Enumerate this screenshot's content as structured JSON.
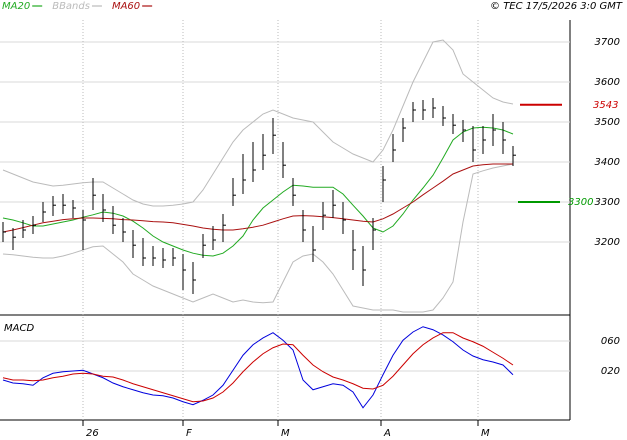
{
  "header": {
    "copyright": "© TEC 17/5/2026 3:0 GMT"
  },
  "chart_data": [
    {
      "type": "ohlc",
      "ylim": [
        3017.5,
        3755
      ],
      "yticks": [
        3200,
        3300,
        3400,
        3500,
        3600,
        3700
      ],
      "grid": true,
      "xticks": [
        {
          "value": 8,
          "label": "26"
        },
        {
          "value": 18,
          "label": "F"
        },
        {
          "value": 27.5,
          "label": "M"
        },
        {
          "value": 37.8,
          "label": "A"
        },
        {
          "value": 47.5,
          "label": "M"
        }
      ],
      "color": "#000000",
      "high": [
        3250,
        3235,
        3255,
        3265,
        3300,
        3315,
        3320,
        3305,
        3280,
        3360,
        3320,
        3290,
        3260,
        3230,
        3210,
        3190,
        3185,
        3185,
        3170,
        3150,
        3220,
        3240,
        3270,
        3360,
        3420,
        3450,
        3470,
        3510,
        3450,
        3360,
        3280,
        3240,
        3300,
        3330,
        3300,
        3230,
        3190,
        3260,
        3390,
        3470,
        3510,
        3550,
        3555,
        3560,
        3540,
        3520,
        3505,
        3490,
        3490,
        3520,
        3500,
        3440
      ],
      "low": [
        3200,
        3180,
        3210,
        3220,
        3250,
        3265,
        3270,
        3260,
        3180,
        3280,
        3250,
        3220,
        3200,
        3160,
        3140,
        3140,
        3135,
        3140,
        3080,
        3070,
        3160,
        3180,
        3200,
        3290,
        3320,
        3350,
        3380,
        3420,
        3360,
        3290,
        3200,
        3150,
        3230,
        3260,
        3220,
        3130,
        3090,
        3180,
        3300,
        3400,
        3450,
        3500,
        3505,
        3510,
        3490,
        3470,
        3450,
        3400,
        3420,
        3440,
        3420,
        3390
      ],
      "close": [
        3225,
        3212,
        3230,
        3242,
        3275,
        3292,
        3292,
        3285,
        3255,
        3317,
        3280,
        3242,
        3225,
        3192,
        3160,
        3160,
        3155,
        3160,
        3130,
        3105,
        3192,
        3205,
        3242,
        3317,
        3355,
        3380,
        3417,
        3467,
        3392,
        3317,
        3230,
        3180,
        3267,
        3292,
        3255,
        3180,
        3130,
        3230,
        3355,
        3430,
        3485,
        3530,
        3530,
        3535,
        3510,
        3492,
        3480,
        3430,
        3455,
        3480,
        3455,
        3417
      ],
      "series": [
        {
          "name": "MA20",
          "color": "#22aa22",
          "values": [
            3260,
            3255,
            3248,
            3240,
            3240,
            3245,
            3250,
            3255,
            3262,
            3268,
            3275,
            3272,
            3265,
            3252,
            3235,
            3215,
            3200,
            3190,
            3180,
            3172,
            3167,
            3165,
            3172,
            3190,
            3215,
            3255,
            3285,
            3305,
            3325,
            3342,
            3340,
            3337,
            3337,
            3337,
            3320,
            3292,
            3265,
            3235,
            3225,
            3240,
            3270,
            3305,
            3335,
            3367,
            3410,
            3455,
            3475,
            3485,
            3487,
            3485,
            3480,
            3470
          ]
        },
        {
          "name": "BBands",
          "color": "#bbbbbb",
          "upper": [
            3380,
            3370,
            3360,
            3350,
            3345,
            3340,
            3342,
            3345,
            3348,
            3350,
            3350,
            3335,
            3320,
            3305,
            3295,
            3290,
            3290,
            3292,
            3295,
            3300,
            3330,
            3370,
            3410,
            3450,
            3480,
            3500,
            3520,
            3530,
            3520,
            3510,
            3505,
            3500,
            3475,
            3450,
            3435,
            3420,
            3410,
            3400,
            3430,
            3480,
            3540,
            3600,
            3650,
            3700,
            3705,
            3680,
            3620,
            3600,
            3580,
            3560,
            3550,
            3545
          ],
          "lower": [
            3170,
            3168,
            3165,
            3162,
            3160,
            3160,
            3165,
            3172,
            3180,
            3188,
            3190,
            3170,
            3150,
            3120,
            3105,
            3090,
            3080,
            3070,
            3060,
            3050,
            3060,
            3070,
            3060,
            3050,
            3055,
            3050,
            3048,
            3050,
            3100,
            3150,
            3165,
            3170,
            3150,
            3120,
            3080,
            3040,
            3035,
            3030,
            3030,
            3030,
            3025,
            3025,
            3025,
            3030,
            3060,
            3100,
            3250,
            3370,
            3378,
            3385,
            3390,
            3395
          ]
        },
        {
          "name": "MA60",
          "color": "#aa1111",
          "values": [
            3225,
            3230,
            3236,
            3242,
            3248,
            3252,
            3256,
            3258,
            3260,
            3260,
            3259,
            3258,
            3256,
            3255,
            3253,
            3251,
            3250,
            3248,
            3244,
            3240,
            3235,
            3232,
            3230,
            3230,
            3233,
            3237,
            3242,
            3250,
            3258,
            3265,
            3266,
            3265,
            3263,
            3261,
            3258,
            3255,
            3252,
            3250,
            3258,
            3270,
            3285,
            3300,
            3318,
            3335,
            3352,
            3370,
            3380,
            3390,
            3393,
            3395,
            3395,
            3395
          ]
        }
      ],
      "markers": [
        {
          "value": 3543,
          "color": "#cc0000"
        },
        {
          "value": 3300,
          "color": "#009900"
        }
      ]
    },
    {
      "type": "line",
      "title": "MACD",
      "ylim": [
        -45.3,
        93.3
      ],
      "yticks": [
        {
          "value": 60,
          "label": "060"
        },
        {
          "value": 20,
          "label": "020"
        }
      ],
      "grid": true,
      "series": [
        {
          "color": "#0000dd",
          "values": [
            8,
            4,
            3,
            1,
            11,
            17,
            19,
            20,
            21,
            16,
            11,
            4,
            -1,
            -5,
            -9,
            -12,
            -13,
            -16,
            -21,
            -25,
            -19,
            -12,
            1,
            21,
            41,
            55,
            64,
            71,
            61,
            48,
            8,
            -5,
            -1,
            3,
            1,
            -8,
            -29,
            -12,
            15,
            41,
            61,
            72,
            79,
            75,
            68,
            59,
            48,
            40,
            35,
            32,
            28,
            15
          ]
        },
        {
          "color": "#cc0000",
          "values": [
            11,
            8,
            8,
            7,
            8,
            11,
            13,
            16,
            17,
            16,
            13,
            12,
            8,
            3,
            -1,
            -5,
            -9,
            -13,
            -17,
            -21,
            -20,
            -16,
            -8,
            4,
            19,
            32,
            43,
            51,
            56,
            55,
            41,
            28,
            19,
            12,
            8,
            3,
            -3,
            -4,
            1,
            13,
            28,
            43,
            55,
            64,
            71,
            71,
            64,
            59,
            53,
            45,
            37,
            28
          ]
        }
      ]
    }
  ]
}
